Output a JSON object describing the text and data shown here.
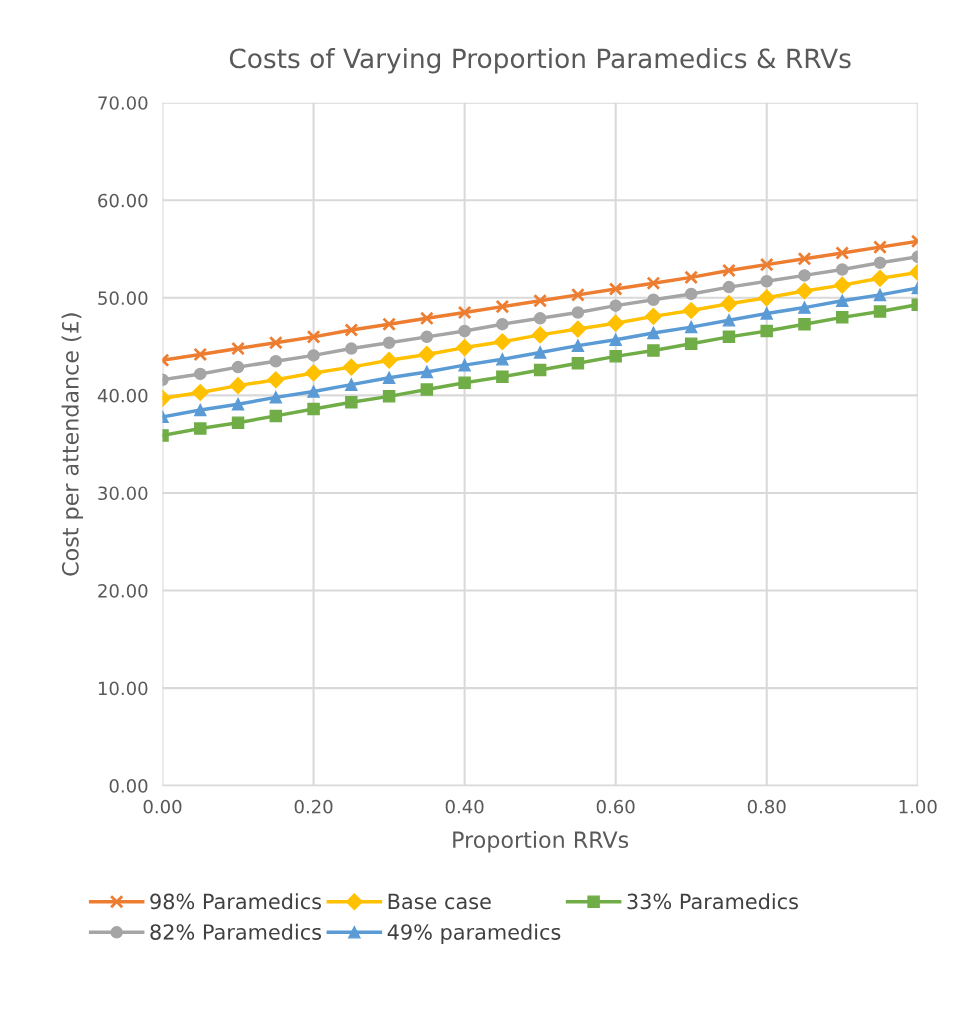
{
  "chart_data": {
    "type": "line",
    "title": "Costs of Varying Proportion Paramedics & RRVs",
    "xlabel": "Proportion RRVs",
    "ylabel": "Cost per attendance (£)",
    "x": [
      0,
      0.05,
      0.1,
      0.15,
      0.2,
      0.25,
      0.3,
      0.35,
      0.4,
      0.45,
      0.5,
      0.55,
      0.6,
      0.65,
      0.7,
      0.75,
      0.8,
      0.85,
      0.9,
      0.95,
      1.0
    ],
    "series": [
      {
        "name": "98% Paramedics",
        "color": "#ed7d31",
        "marker": "cross",
        "values": [
          43.6,
          44.2,
          44.8,
          45.4,
          46.0,
          46.7,
          47.3,
          47.9,
          48.5,
          49.1,
          49.7,
          50.3,
          50.9,
          51.5,
          52.1,
          52.8,
          53.4,
          54.0,
          54.6,
          55.2,
          55.8
        ]
      },
      {
        "name": "82% Paramedics",
        "color": "#a5a5a5",
        "marker": "circle",
        "values": [
          41.6,
          42.2,
          42.9,
          43.5,
          44.1,
          44.8,
          45.4,
          46.0,
          46.6,
          47.3,
          47.9,
          48.5,
          49.2,
          49.8,
          50.4,
          51.1,
          51.7,
          52.3,
          52.9,
          53.6,
          54.2
        ]
      },
      {
        "name": "Base case",
        "color": "#ffc000",
        "marker": "diamond",
        "values": [
          39.7,
          40.3,
          41.0,
          41.6,
          42.3,
          42.9,
          43.6,
          44.2,
          44.9,
          45.5,
          46.2,
          46.8,
          47.4,
          48.1,
          48.7,
          49.4,
          50.0,
          50.7,
          51.3,
          52.0,
          52.6
        ]
      },
      {
        "name": "49% paramedics",
        "color": "#5b9bd5",
        "marker": "triangle",
        "values": [
          37.8,
          38.5,
          39.1,
          39.8,
          40.4,
          41.1,
          41.8,
          42.4,
          43.1,
          43.7,
          44.4,
          45.1,
          45.7,
          46.4,
          47.0,
          47.7,
          48.4,
          49.0,
          49.7,
          50.3,
          51.0
        ]
      },
      {
        "name": "33% Paramedics",
        "color": "#70ad47",
        "marker": "square",
        "values": [
          35.9,
          36.6,
          37.2,
          37.9,
          38.6,
          39.3,
          39.9,
          40.6,
          41.3,
          41.9,
          42.6,
          43.3,
          44.0,
          44.6,
          45.3,
          46.0,
          46.6,
          47.3,
          48.0,
          48.6,
          49.3
        ]
      }
    ],
    "xlim": [
      0,
      1
    ],
    "ylim": [
      0,
      70
    ],
    "xticks": [
      {
        "value": 0,
        "label": "0.00"
      },
      {
        "value": 0.2,
        "label": "0.20"
      },
      {
        "value": 0.4,
        "label": "0.40"
      },
      {
        "value": 0.6,
        "label": "0.60"
      },
      {
        "value": 0.8,
        "label": "0.80"
      },
      {
        "value": 1.0,
        "label": "1.00"
      }
    ],
    "yticks": [
      {
        "value": 0,
        "label": "0.00"
      },
      {
        "value": 10,
        "label": "10.00"
      },
      {
        "value": 20,
        "label": "20.00"
      },
      {
        "value": 30,
        "label": "30.00"
      },
      {
        "value": 40,
        "label": "40.00"
      },
      {
        "value": 50,
        "label": "50.00"
      },
      {
        "value": 60,
        "label": "60.00"
      },
      {
        "value": 70,
        "label": "70.00"
      }
    ],
    "grid": true,
    "legend": "bottom",
    "line_style": "solid"
  }
}
